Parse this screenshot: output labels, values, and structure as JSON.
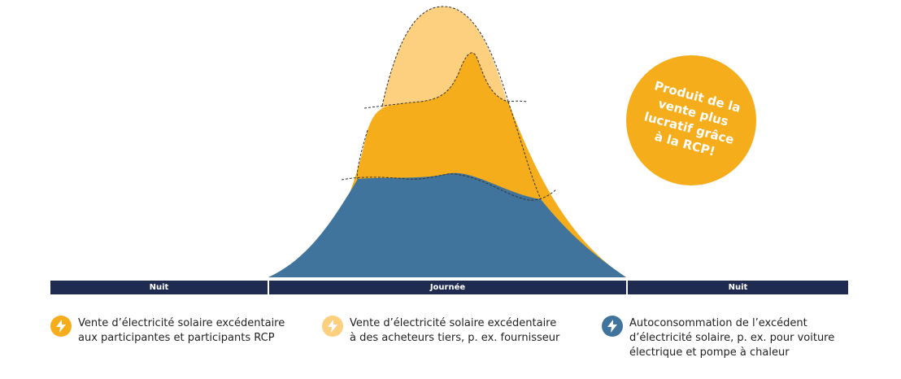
{
  "timeline": {
    "segments": [
      "Nuit",
      "Journée",
      "Nuit"
    ],
    "color": "#1f2b50"
  },
  "badge": {
    "text": "Produit de la\nvente plus\nlucratif grâce\nà la RCP!",
    "color": "#f5ad1b"
  },
  "areas": {
    "third_party_sale_color": "#fcd07e",
    "rcp_sale_color": "#f5ad1b",
    "self_consumption_color": "#41749c"
  },
  "legend": [
    {
      "icon": "lightning-icon",
      "color": "#f5ad1b",
      "text": "Vente d’électricité solaire excédentaire\naux participantes et participants RCP"
    },
    {
      "icon": "lightning-icon",
      "color": "#fcd07e",
      "text": "Vente d’électricité solaire excédentaire\nà des acheteurs tiers, p. ex. fournisseur"
    },
    {
      "icon": "lightning-icon",
      "color": "#41749c",
      "text": "Autoconsommation de l’excédent\nd’électricité solaire, p. ex. pour voiture\nélectrique et pompe à chaleur"
    }
  ]
}
